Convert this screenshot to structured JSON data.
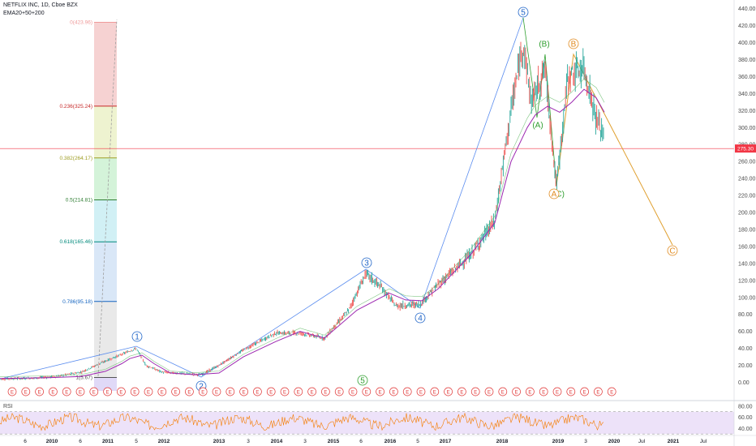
{
  "header": {
    "symbol_line": "NETFLIX INC, 1D, Cboe BZX",
    "indicator_line": "EMA20+50+200"
  },
  "current_price": {
    "label": "275.30",
    "value": 275.3,
    "color": "#f23645"
  },
  "price_ticks": [
    "440.00",
    "420.00",
    "400.00",
    "380.00",
    "360.00",
    "340.00",
    "320.00",
    "300.00",
    "280.00",
    "260.00",
    "240.00",
    "220.00",
    "200.00",
    "180.00",
    "160.00",
    "140.00",
    "120.00",
    "100.00",
    "80.00",
    "60.00",
    "40.00",
    "20.00",
    "0.00"
  ],
  "rsi_panel": {
    "label": "RSI",
    "ticks": [
      "80.00",
      "60.00",
      "40.00"
    ],
    "upper": 70,
    "lower": 30,
    "band_color": "#e5d5f7",
    "line_color": "#f57c00"
  },
  "time_ticks": [
    "6",
    "2010",
    "6",
    "2011",
    "5",
    "2012",
    "2013",
    "3",
    "2014",
    "3",
    "2015",
    "6",
    "2016",
    "5",
    "2017",
    "2018",
    "2019",
    "3",
    "2020",
    "Jul",
    "2021",
    "Jul"
  ],
  "fib_levels": [
    {
      "label": "0(423.96)",
      "price": 423.96,
      "color": "#ef9a9a"
    },
    {
      "label": "0.236(325.24)",
      "price": 325.24,
      "color": "#c62828"
    },
    {
      "label": "0.382(264.17)",
      "price": 264.17,
      "color": "#9e9d24"
    },
    {
      "label": "0.5(214.81)",
      "price": 214.81,
      "color": "#2e7d32"
    },
    {
      "label": "0.618(165.46)",
      "price": 165.46,
      "color": "#00897b"
    },
    {
      "label": "0.786(95.18)",
      "price": 95.18,
      "color": "#1565c0"
    },
    {
      "label": "1(5.67)",
      "price": 5.67,
      "color": "#555555"
    }
  ],
  "wave_labels": [
    {
      "label": "1",
      "price": 42,
      "color": "#1e64c8"
    },
    {
      "label": "2",
      "price": 0,
      "color": "#1e64c8"
    },
    {
      "label": "3",
      "price": 142,
      "color": "#1e64c8"
    },
    {
      "label": "4",
      "price": 78,
      "color": "#1e64c8"
    },
    {
      "label": "5",
      "price": 428,
      "color": "#1e64c8"
    },
    {
      "label": "(A)",
      "price": 302,
      "color": "#2e9e2e"
    },
    {
      "label": "(B)",
      "price": 392,
      "color": "#2e9e2e"
    },
    {
      "label": "(C)",
      "price": 220,
      "color": "#2e9e2e"
    },
    {
      "label": "A",
      "price": 220,
      "color": "#e08a1e"
    },
    {
      "label": "B",
      "price": 392,
      "color": "#e08a1e"
    },
    {
      "label": "C",
      "price": 155,
      "color": "#e08a1e"
    },
    {
      "label": "5",
      "price": -12,
      "color": "#2e9e2e"
    }
  ],
  "earnings_marker": "E",
  "earnings_count": 45,
  "chart_data": {
    "type": "line",
    "title": "NETFLIX INC, 1D, Cboe BZX",
    "ylim": [
      -10,
      445
    ],
    "series": [
      {
        "name": "EMA20+50+200",
        "points": [
          [
            "2009-03",
            4.5
          ],
          [
            "2009-09",
            5.5
          ],
          [
            "2010-01",
            7
          ],
          [
            "2010-06",
            13
          ],
          [
            "2010-11",
            22
          ],
          [
            "2011-03",
            28
          ],
          [
            "2011-07",
            38
          ],
          [
            "2011-09",
            25
          ],
          [
            "2011-12",
            11
          ],
          [
            "2012-06",
            10
          ],
          [
            "2012-12",
            11
          ],
          [
            "2013-06",
            30
          ],
          [
            "2013-12",
            48
          ],
          [
            "2014-06",
            60
          ],
          [
            "2014-12",
            52
          ],
          [
            "2015-06",
            85
          ],
          [
            "2015-12",
            110
          ],
          [
            "2016-06",
            95
          ],
          [
            "2016-12",
            118
          ],
          [
            "2017-06",
            150
          ],
          [
            "2017-12",
            188
          ],
          [
            "2018-03",
            280
          ],
          [
            "2018-06",
            325
          ],
          [
            "2018-09",
            315
          ],
          [
            "2018-12",
            330
          ],
          [
            "2019-03",
            345
          ],
          [
            "2019-06",
            335
          ],
          [
            "2019-09",
            318
          ]
        ]
      }
    ]
  }
}
